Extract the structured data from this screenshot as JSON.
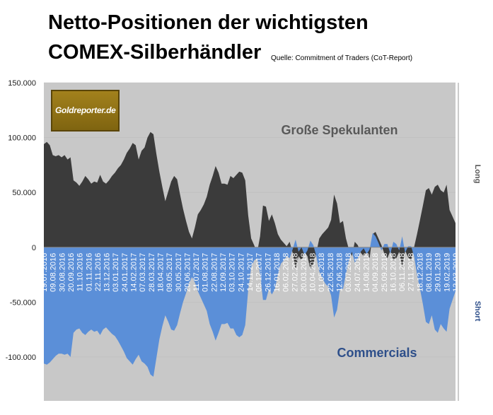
{
  "title_line1": "Netto-Positionen der wichtigsten",
  "title_line2": "COMEX-Silberhändler",
  "source": "Quelle: Commitment of Traders (CoT-Report)",
  "logo_text": "Goldreporter.de",
  "colors": {
    "speculators": "#3b3b3b",
    "commercials": "#5b8fd8",
    "plot_bg": "#c8c8c8"
  },
  "chart_data": {
    "type": "area",
    "ylim": [
      -140000,
      150000
    ],
    "yticks": [
      150000,
      100000,
      50000,
      0,
      -50000,
      -100000
    ],
    "ytick_labels": [
      "150.000",
      "100.000",
      "50.000",
      "0",
      "-50.000",
      "-100.000"
    ],
    "right_labels": {
      "top": "Long",
      "bottom": "Short"
    },
    "annotations": {
      "speculators": "Große Spekulanten",
      "commercials": "Commercials"
    },
    "x_tick_labels": [
      "19.07.2016",
      "09.08.2016",
      "30.08.2016",
      "20.09.2016",
      "11.10.2016",
      "01.11.2016",
      "22.11.2016",
      "13.12.2016",
      "03.01.2017",
      "24.01.2017",
      "14.02.2017",
      "07.03.2017",
      "28.03.2017",
      "18.04.2017",
      "09.05.2017",
      "30.05.2017",
      "20.06.2017",
      "11.07.2017",
      "01.08.2017",
      "22.08.2017",
      "12.09.2017",
      "03.10.2017",
      "24.10.2017",
      "14.11.2017",
      "05.12.2017",
      "26.12.2017",
      "16.01.2018",
      "06.02.2018",
      "27.02.2018",
      "20.03.2018",
      "10.04.2018",
      "01.05.2018",
      "22.05.2018",
      "12.06.2018",
      "03.07.2018",
      "24.07.2018",
      "14.08.2018",
      "04.09.2018",
      "25.09.2018",
      "16.10.2018",
      "06.11.2018",
      "27.11.2018",
      "18.12.2018",
      "08.01.2019",
      "29.01.2019",
      "19.02.2019",
      "12.03.2019"
    ],
    "series": [
      {
        "name": "Große Spekulanten",
        "values": [
          94000,
          96000,
          93000,
          84000,
          83000,
          84000,
          82000,
          84000,
          80000,
          82000,
          61000,
          59000,
          56000,
          60000,
          65000,
          62000,
          58000,
          60000,
          59000,
          66000,
          60000,
          58000,
          61000,
          65000,
          68000,
          72000,
          75000,
          80000,
          86000,
          90000,
          95000,
          93000,
          80000,
          88000,
          91000,
          100000,
          105000,
          103000,
          85000,
          69000,
          55000,
          42000,
          51000,
          60000,
          65000,
          62000,
          48000,
          35000,
          24000,
          14000,
          8000,
          18000,
          30000,
          34000,
          39000,
          46000,
          57000,
          65000,
          74000,
          68000,
          58000,
          58000,
          57000,
          65000,
          63000,
          66000,
          69000,
          68000,
          61000,
          29000,
          8000,
          2000,
          -5000,
          10000,
          38000,
          37000,
          24000,
          30000,
          22000,
          12000,
          7000,
          4000,
          1000,
          5000,
          -5000,
          -20000,
          -8000,
          -12000,
          -5000,
          -8000,
          -20000,
          -15000,
          -5000,
          8000,
          12000,
          15000,
          18000,
          25000,
          48000,
          40000,
          22000,
          24000,
          8000,
          -2000,
          -8000,
          5000,
          2000,
          -5000,
          -8000,
          -5000,
          -10000,
          12000,
          14000,
          8000,
          2000,
          -6000,
          -10000,
          -3000,
          -12000,
          -10000,
          -4000,
          -18000,
          -3000,
          -9000,
          -12000,
          0,
          12000,
          25000,
          38000,
          52000,
          54000,
          48000,
          55000,
          57000,
          52000,
          50000,
          57000,
          34000,
          28000,
          22000
        ]
      },
      {
        "name": "Commercials",
        "values": [
          -106000,
          -107000,
          -105000,
          -102000,
          -99000,
          -97000,
          -97000,
          -98000,
          -97000,
          -100000,
          -78000,
          -75000,
          -74000,
          -78000,
          -80000,
          -77000,
          -75000,
          -77000,
          -76000,
          -80000,
          -75000,
          -73000,
          -76000,
          -79000,
          -81000,
          -85000,
          -90000,
          -95000,
          -101000,
          -104000,
          -107000,
          -102000,
          -98000,
          -104000,
          -106000,
          -109000,
          -116000,
          -118000,
          -101000,
          -84000,
          -72000,
          -62000,
          -68000,
          -75000,
          -76000,
          -71000,
          -60000,
          -50000,
          -42000,
          -33000,
          -27000,
          -32000,
          -40000,
          -46000,
          -52000,
          -58000,
          -70000,
          -77000,
          -85000,
          -78000,
          -70000,
          -70000,
          -69000,
          -74000,
          -74000,
          -80000,
          -82000,
          -80000,
          -71000,
          -39000,
          -18000,
          -12000,
          -10000,
          -24000,
          -48000,
          -48000,
          -38000,
          -43000,
          -38000,
          -25000,
          -15000,
          -12000,
          -8000,
          -10000,
          -2000,
          7000,
          -4000,
          0,
          -7000,
          -3000,
          6000,
          2000,
          -8000,
          -22000,
          -28000,
          -33000,
          -36000,
          -44000,
          -64000,
          -57000,
          -38000,
          -38000,
          -24000,
          -12000,
          -4000,
          -14000,
          -10000,
          -4000,
          -1000,
          -6000,
          -2000,
          13000,
          10000,
          4000,
          -3000,
          3000,
          3000,
          -6000,
          5000,
          3000,
          -3000,
          10000,
          -5000,
          1000,
          1000,
          -8000,
          -25000,
          -38000,
          -52000,
          -68000,
          -70000,
          -62000,
          -75000,
          -78000,
          -70000,
          -74000,
          -77000,
          -56000,
          -48000,
          -40000
        ]
      }
    ]
  }
}
